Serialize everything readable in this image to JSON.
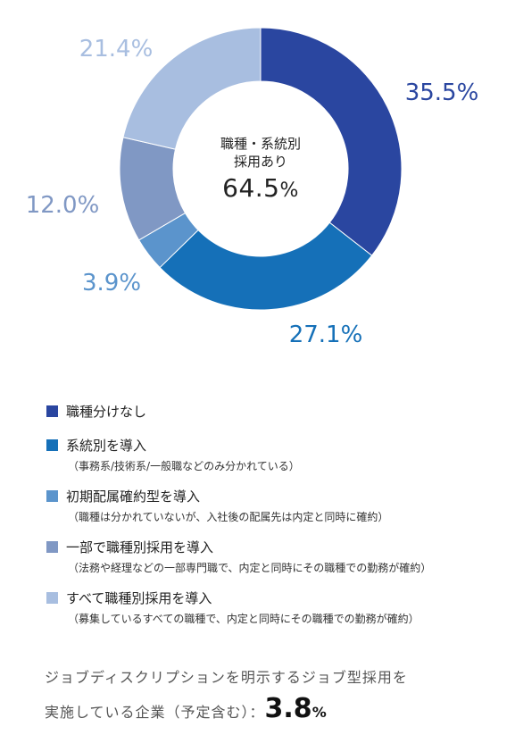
{
  "chart_data": {
    "type": "pie",
    "center": {
      "line1": "職種・系統別",
      "line2": "採用あり",
      "value": "64.5",
      "unit": "%"
    },
    "slices": [
      {
        "key": "s1",
        "value": 35.5,
        "label": "35.5%",
        "color": "#2a46a0"
      },
      {
        "key": "s2",
        "value": 27.1,
        "label": "27.1%",
        "color": "#1570b8"
      },
      {
        "key": "s3",
        "value": 3.9,
        "label": "3.9%",
        "color": "#5b94cc"
      },
      {
        "key": "s4",
        "value": 12.0,
        "label": "12.0%",
        "color": "#8098c4"
      },
      {
        "key": "s5",
        "value": 21.4,
        "label": "21.4%",
        "color": "#a8bee0"
      }
    ]
  },
  "legend": [
    {
      "title": "職種分けなし",
      "sub": "",
      "color": "#2a46a0"
    },
    {
      "title": "系統別を導入",
      "sub": "（事務系/技術系/一般職などのみ分かれている）",
      "color": "#1570b8"
    },
    {
      "title": "初期配属確約型を導入",
      "sub": "（職種は分かれていないが、入社後の配属先は内定と同時に確約）",
      "color": "#5b94cc"
    },
    {
      "title": "一部で職種別採用を導入",
      "sub": "（法務や経理などの一部専門職で、内定と同時にその職種での勤務が確約）",
      "color": "#8098c4"
    },
    {
      "title": "すべて職種別採用を導入",
      "sub": "（募集しているすべての職種で、内定と同時にその職種での勤務が確約）",
      "color": "#a8bee0"
    }
  ],
  "footer": {
    "line1": "ジョブディスクリプションを明示するジョブ型採用を",
    "line2": "実施している企業（予定含む）：",
    "value": "3.8",
    "unit": "%"
  }
}
